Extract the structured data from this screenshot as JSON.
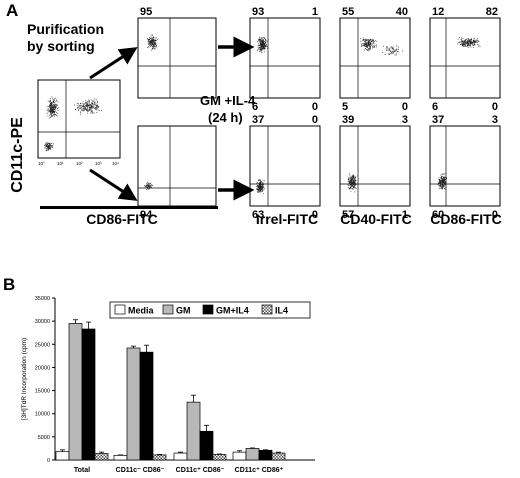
{
  "panelA": {
    "letter": "A",
    "ylabel": "CD11c-PE",
    "sorting_text_line1": "Purification",
    "sorting_text_line2": "by sorting",
    "gm_text_line1": "GM +IL-4",
    "gm_text_line2": "(24 h)",
    "xlabels": [
      "CD86-FITC",
      "Irrel-FITC",
      "CD40-FITC",
      "CD86-FITC"
    ],
    "initial_plot_tick_labels": [
      "10°",
      "10¹",
      "10²",
      "10³",
      "10⁴"
    ],
    "plots": [
      {
        "id": "sorted-top",
        "ul": "95",
        "ur": "",
        "ll": "",
        "lr": ""
      },
      {
        "id": "sorted-bottom",
        "ul": "",
        "ur": "",
        "ll": "94",
        "lr": ""
      },
      {
        "id": "irrel-top",
        "ul": "93",
        "ur": "1",
        "ll": "6",
        "lr": "0"
      },
      {
        "id": "cd40-top",
        "ul": "55",
        "ur": "40",
        "ll": "5",
        "lr": "0"
      },
      {
        "id": "cd86-top",
        "ul": "12",
        "ur": "82",
        "ll": "6",
        "lr": "0"
      },
      {
        "id": "irrel-bottom",
        "ul": "37",
        "ur": "0",
        "ll": "63",
        "lr": "0"
      },
      {
        "id": "cd40-bottom",
        "ul": "39",
        "ur": "3",
        "ll": "57",
        "lr": "1"
      },
      {
        "id": "cd86-bottom",
        "ul": "37",
        "ur": "3",
        "ll": "60",
        "lr": "0"
      }
    ]
  },
  "panelB": {
    "letter": "B"
  },
  "chart_data": {
    "type": "bar",
    "title": "",
    "xlabel": "",
    "ylabel": "[3H]TdR Incorporation (cpm)",
    "ylim": [
      0,
      35000
    ],
    "yticks": [
      0,
      5000,
      10000,
      15000,
      20000,
      25000,
      30000,
      35000
    ],
    "ytick_labels": [
      "0",
      "5000",
      "10000",
      "15000",
      "20000",
      "25000",
      "30000",
      "35000"
    ],
    "categories": [
      "Total",
      "CD11c⁻ CD86⁻",
      "CD11c⁺ CD86⁻",
      "CD11c⁺ CD86⁺"
    ],
    "legend_position": "top",
    "series": [
      {
        "name": "Media",
        "values": [
          1800,
          1000,
          1500,
          1700
        ],
        "errors": [
          400,
          100,
          200,
          300
        ],
        "color": "#ffffff"
      },
      {
        "name": "GM",
        "values": [
          29500,
          24200,
          12500,
          2500
        ],
        "errors": [
          800,
          400,
          1500,
          100
        ],
        "color": "#b8b8b8"
      },
      {
        "name": "GM+IL4",
        "values": [
          28300,
          23300,
          6200,
          2100
        ],
        "errors": [
          1500,
          1500,
          1300,
          100
        ],
        "color": "#000000"
      },
      {
        "name": "IL4",
        "values": [
          1400,
          1100,
          1200,
          1500
        ],
        "errors": [
          300,
          100,
          100,
          200
        ],
        "color": "hatched"
      }
    ]
  }
}
